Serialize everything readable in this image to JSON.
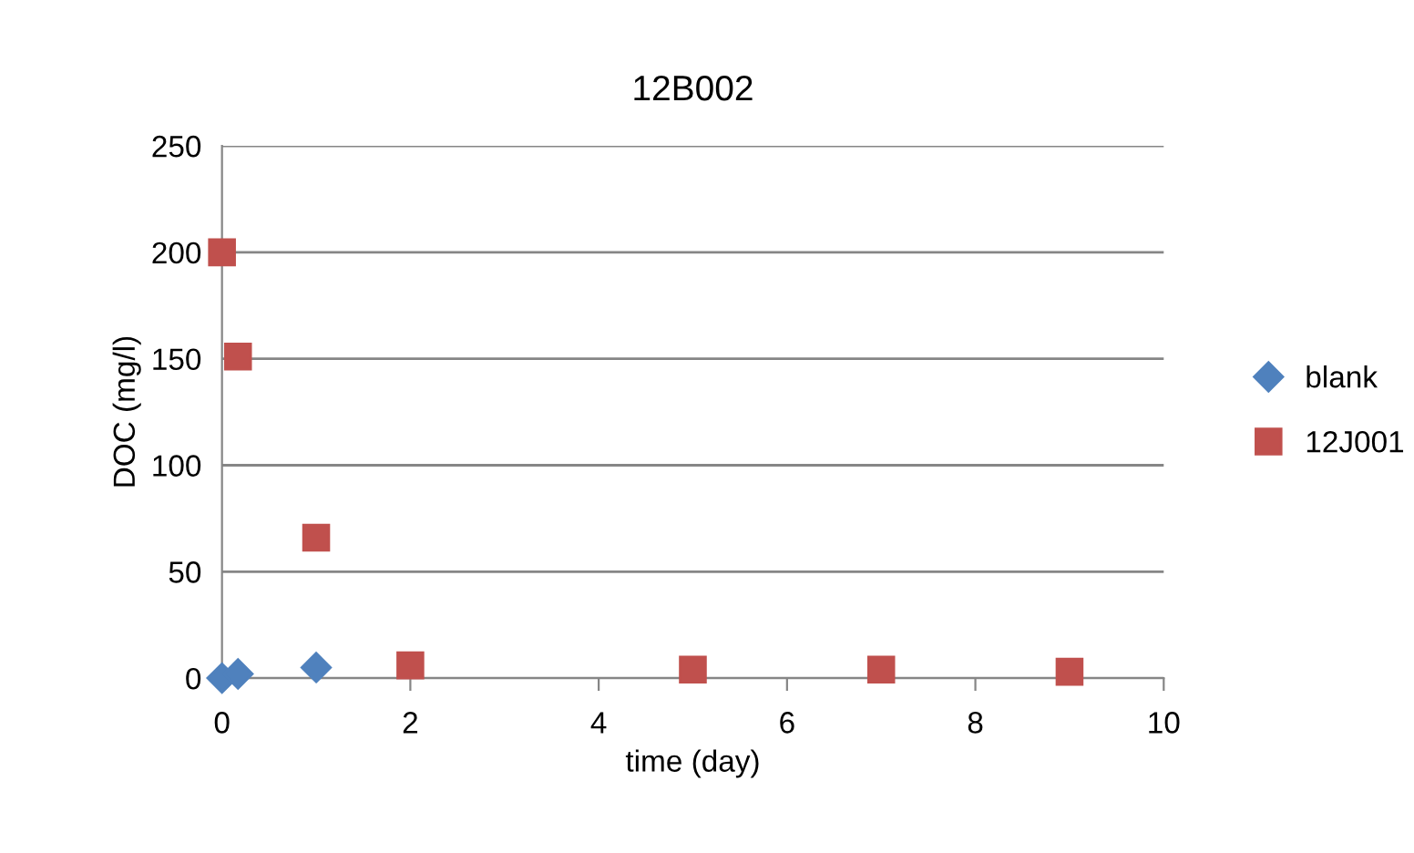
{
  "chart_data": {
    "type": "scatter",
    "title": "12B002",
    "xlabel": "time (day)",
    "ylabel": "DOC (mg/l)",
    "xlim": [
      0,
      10
    ],
    "xticks": [
      0,
      2,
      4,
      6,
      8,
      10
    ],
    "ylim": [
      0,
      250
    ],
    "yticks": [
      0,
      50,
      100,
      150,
      200,
      250
    ],
    "grid": "y",
    "legend": "right",
    "series": [
      {
        "name": "blank",
        "color": "#4f81bd",
        "marker": "diamond",
        "x": [
          0,
          0.17,
          1
        ],
        "values": [
          0,
          2,
          5
        ]
      },
      {
        "name": "12J001",
        "color": "#c0504d",
        "marker": "square",
        "x": [
          0,
          0.17,
          1,
          2,
          5,
          7,
          9
        ],
        "values": [
          200,
          151,
          66,
          6,
          4,
          4,
          3
        ]
      }
    ]
  }
}
